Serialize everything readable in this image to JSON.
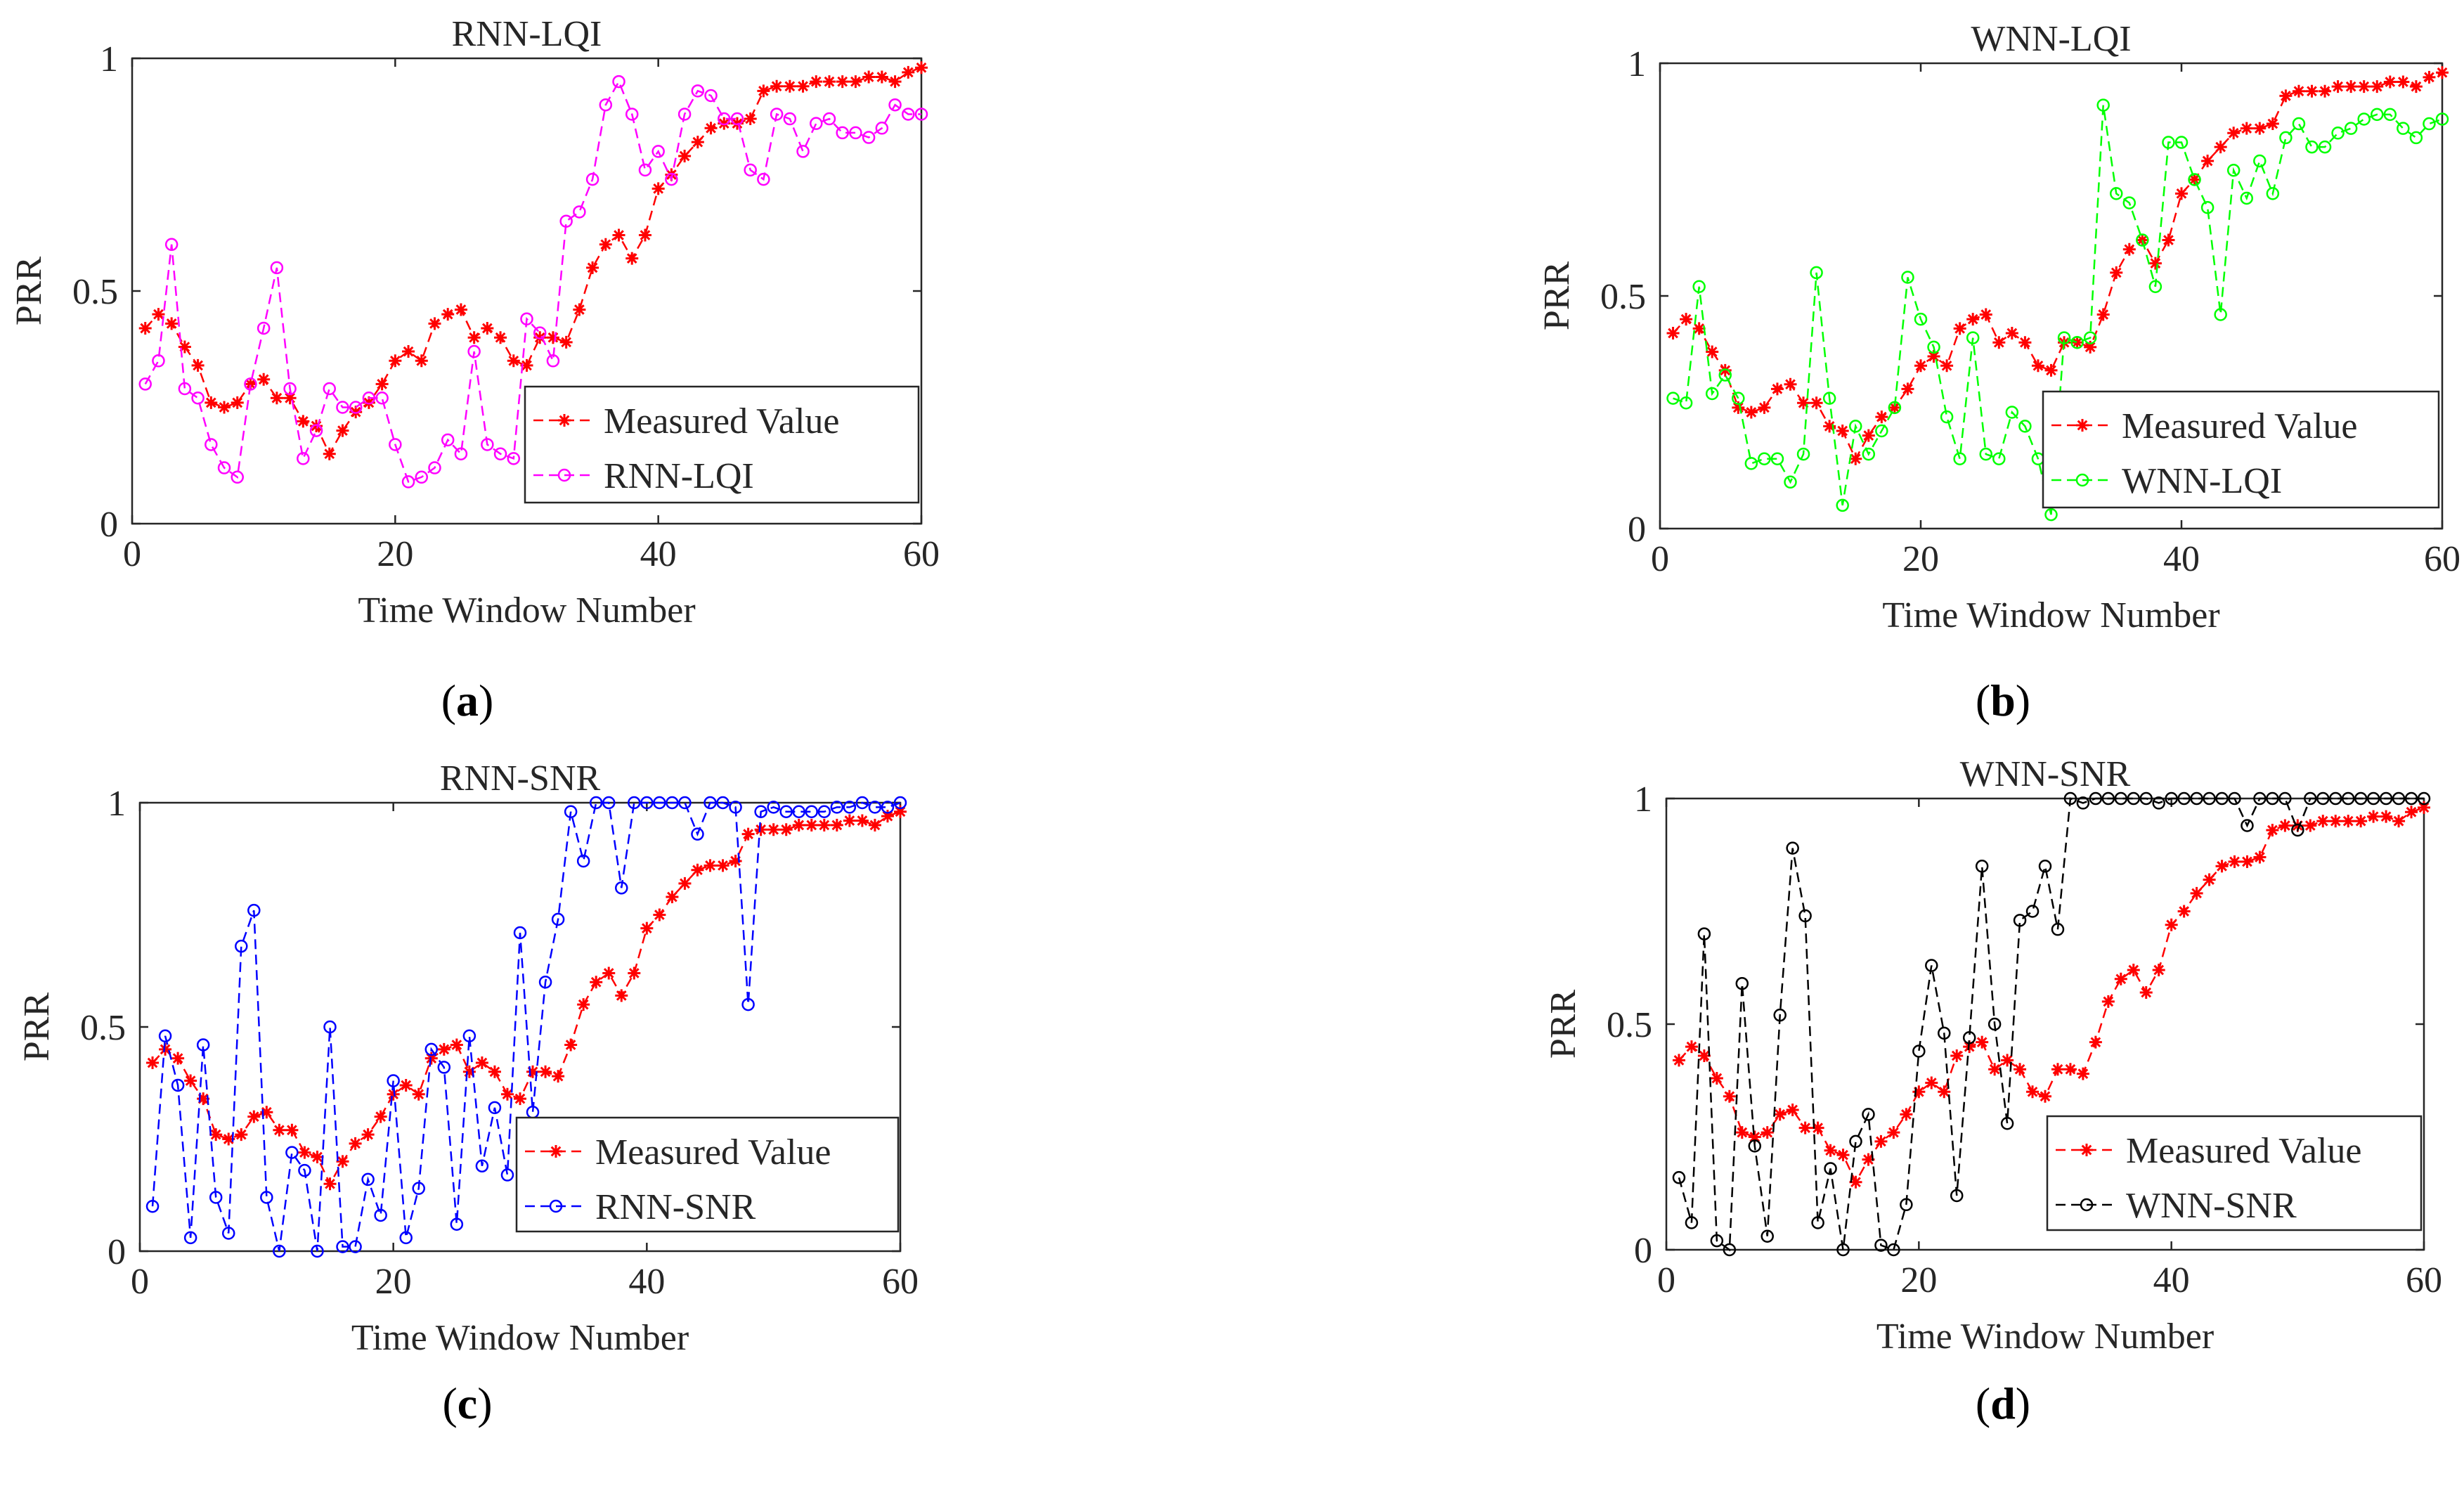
{
  "figure": {
    "panel_labels": [
      "a",
      "b",
      "c",
      "d"
    ]
  },
  "colors": {
    "measured": "#FF0000",
    "rnn_lqi": "#FF00FF",
    "wnn_lqi": "#00FF00",
    "rnn_snr": "#0000FF",
    "wnn_snr": "#000000",
    "axis": "#262626"
  },
  "chart_data": [
    {
      "type": "line",
      "title": "RNN-LQI",
      "xlabel": "Time Window Number",
      "ylabel": "PRR",
      "xlim": [
        0,
        60
      ],
      "ylim": [
        0,
        1
      ],
      "xticks": [
        0,
        20,
        40,
        60
      ],
      "yticks": [
        0,
        0.5,
        1
      ],
      "legend_position": "bottom-right",
      "x": [
        1,
        2,
        3,
        4,
        5,
        6,
        7,
        8,
        9,
        10,
        11,
        12,
        13,
        14,
        15,
        16,
        17,
        18,
        19,
        20,
        21,
        22,
        23,
        24,
        25,
        26,
        27,
        28,
        29,
        30,
        31,
        32,
        33,
        34,
        35,
        36,
        37,
        38,
        39,
        40,
        41,
        42,
        43,
        44,
        45,
        46,
        47,
        48,
        49,
        50,
        51,
        52,
        53,
        54,
        55,
        56,
        57,
        58,
        59,
        60
      ],
      "series": [
        {
          "name": "Measured Value",
          "marker": "star",
          "color": "#FF0000",
          "values": [
            0.42,
            0.45,
            0.43,
            0.38,
            0.34,
            0.26,
            0.25,
            0.26,
            0.3,
            0.31,
            0.27,
            0.27,
            0.22,
            0.21,
            0.15,
            0.2,
            0.24,
            0.26,
            0.3,
            0.35,
            0.37,
            0.35,
            0.43,
            0.45,
            0.46,
            0.4,
            0.42,
            0.4,
            0.35,
            0.34,
            0.4,
            0.4,
            0.39,
            0.46,
            0.55,
            0.6,
            0.62,
            0.57,
            0.62,
            0.72,
            0.75,
            0.79,
            0.82,
            0.85,
            0.86,
            0.86,
            0.87,
            0.93,
            0.94,
            0.94,
            0.94,
            0.95,
            0.95,
            0.95,
            0.95,
            0.96,
            0.96,
            0.95,
            0.97,
            0.98
          ]
        },
        {
          "name": "RNN-LQI",
          "marker": "circle",
          "color": "#FF00FF",
          "values": [
            0.3,
            0.35,
            0.6,
            0.29,
            0.27,
            0.17,
            0.12,
            0.1,
            0.3,
            0.42,
            0.55,
            0.29,
            0.14,
            0.2,
            0.29,
            0.25,
            0.25,
            0.27,
            0.27,
            0.17,
            0.09,
            0.1,
            0.12,
            0.18,
            0.15,
            0.37,
            0.17,
            0.15,
            0.14,
            0.44,
            0.41,
            0.35,
            0.65,
            0.67,
            0.74,
            0.9,
            0.95,
            0.88,
            0.76,
            0.8,
            0.74,
            0.88,
            0.93,
            0.92,
            0.87,
            0.87,
            0.76,
            0.74,
            0.88,
            0.87,
            0.8,
            0.86,
            0.87,
            0.84,
            0.84,
            0.83,
            0.85,
            0.9,
            0.88,
            0.88
          ]
        }
      ]
    },
    {
      "type": "line",
      "title": "WNN-LQI",
      "xlabel": "Time Window Number",
      "ylabel": "PRR",
      "xlim": [
        0,
        60
      ],
      "ylim": [
        0,
        1
      ],
      "xticks": [
        0,
        20,
        40,
        60
      ],
      "yticks": [
        0,
        0.5,
        1
      ],
      "legend_position": "bottom-right",
      "x": [
        1,
        2,
        3,
        4,
        5,
        6,
        7,
        8,
        9,
        10,
        11,
        12,
        13,
        14,
        15,
        16,
        17,
        18,
        19,
        20,
        21,
        22,
        23,
        24,
        25,
        26,
        27,
        28,
        29,
        30,
        31,
        32,
        33,
        34,
        35,
        36,
        37,
        38,
        39,
        40,
        41,
        42,
        43,
        44,
        45,
        46,
        47,
        48,
        49,
        50,
        51,
        52,
        53,
        54,
        55,
        56,
        57,
        58,
        59,
        60
      ],
      "series": [
        {
          "name": "Measured Value",
          "marker": "star",
          "color": "#FF0000",
          "values": [
            0.42,
            0.45,
            0.43,
            0.38,
            0.34,
            0.26,
            0.25,
            0.26,
            0.3,
            0.31,
            0.27,
            0.27,
            0.22,
            0.21,
            0.15,
            0.2,
            0.24,
            0.26,
            0.3,
            0.35,
            0.37,
            0.35,
            0.43,
            0.45,
            0.46,
            0.4,
            0.42,
            0.4,
            0.35,
            0.34,
            0.4,
            0.4,
            0.39,
            0.46,
            0.55,
            0.6,
            0.62,
            0.57,
            0.62,
            0.72,
            0.75,
            0.79,
            0.82,
            0.85,
            0.86,
            0.86,
            0.87,
            0.93,
            0.94,
            0.94,
            0.94,
            0.95,
            0.95,
            0.95,
            0.95,
            0.96,
            0.96,
            0.95,
            0.97,
            0.98
          ]
        },
        {
          "name": "WNN-LQI",
          "marker": "circle",
          "color": "#00FF00",
          "values": [
            0.28,
            0.27,
            0.52,
            0.29,
            0.33,
            0.28,
            0.14,
            0.15,
            0.15,
            0.1,
            0.16,
            0.55,
            0.28,
            0.05,
            0.22,
            0.16,
            0.21,
            0.26,
            0.54,
            0.45,
            0.39,
            0.24,
            0.15,
            0.41,
            0.16,
            0.15,
            0.25,
            0.22,
            0.15,
            0.03,
            0.41,
            0.4,
            0.41,
            0.91,
            0.72,
            0.7,
            0.62,
            0.52,
            0.83,
            0.83,
            0.75,
            0.69,
            0.46,
            0.77,
            0.71,
            0.79,
            0.72,
            0.84,
            0.87,
            0.82,
            0.82,
            0.85,
            0.86,
            0.88,
            0.89,
            0.89,
            0.86,
            0.84,
            0.87,
            0.88
          ]
        }
      ]
    },
    {
      "type": "line",
      "title": "RNN-SNR",
      "xlabel": "Time Window Number",
      "ylabel": "PRR",
      "xlim": [
        0,
        60
      ],
      "ylim": [
        0,
        1
      ],
      "xticks": [
        0,
        20,
        40,
        60
      ],
      "yticks": [
        0,
        0.5,
        1
      ],
      "legend_position": "bottom-right",
      "x": [
        1,
        2,
        3,
        4,
        5,
        6,
        7,
        8,
        9,
        10,
        11,
        12,
        13,
        14,
        15,
        16,
        17,
        18,
        19,
        20,
        21,
        22,
        23,
        24,
        25,
        26,
        27,
        28,
        29,
        30,
        31,
        32,
        33,
        34,
        35,
        36,
        37,
        38,
        39,
        40,
        41,
        42,
        43,
        44,
        45,
        46,
        47,
        48,
        49,
        50,
        51,
        52,
        53,
        54,
        55,
        56,
        57,
        58,
        59,
        60
      ],
      "series": [
        {
          "name": "Measured Value",
          "marker": "star",
          "color": "#FF0000",
          "values": [
            0.42,
            0.45,
            0.43,
            0.38,
            0.34,
            0.26,
            0.25,
            0.26,
            0.3,
            0.31,
            0.27,
            0.27,
            0.22,
            0.21,
            0.15,
            0.2,
            0.24,
            0.26,
            0.3,
            0.35,
            0.37,
            0.35,
            0.43,
            0.45,
            0.46,
            0.4,
            0.42,
            0.4,
            0.35,
            0.34,
            0.4,
            0.4,
            0.39,
            0.46,
            0.55,
            0.6,
            0.62,
            0.57,
            0.62,
            0.72,
            0.75,
            0.79,
            0.82,
            0.85,
            0.86,
            0.86,
            0.87,
            0.93,
            0.94,
            0.94,
            0.94,
            0.95,
            0.95,
            0.95,
            0.95,
            0.96,
            0.96,
            0.95,
            0.97,
            0.98
          ]
        },
        {
          "name": "RNN-SNR",
          "marker": "circle",
          "color": "#0000FF",
          "values": [
            0.1,
            0.48,
            0.37,
            0.03,
            0.46,
            0.12,
            0.04,
            0.68,
            0.76,
            0.12,
            0.0,
            0.22,
            0.18,
            0.0,
            0.5,
            0.01,
            0.01,
            0.16,
            0.08,
            0.38,
            0.03,
            0.14,
            0.45,
            0.41,
            0.06,
            0.48,
            0.19,
            0.32,
            0.17,
            0.71,
            0.31,
            0.6,
            0.74,
            0.98,
            0.87,
            1.0,
            1.0,
            0.81,
            1.0,
            1.0,
            1.0,
            1.0,
            1.0,
            0.93,
            1.0,
            1.0,
            0.99,
            0.55,
            0.98,
            0.99,
            0.98,
            0.98,
            0.98,
            0.98,
            0.99,
            0.99,
            1.0,
            0.99,
            0.99,
            1.0
          ]
        }
      ]
    },
    {
      "type": "line",
      "title": "WNN-SNR",
      "xlabel": "Time Window Number",
      "ylabel": "PRR",
      "xlim": [
        0,
        60
      ],
      "ylim": [
        0,
        1
      ],
      "xticks": [
        0,
        20,
        40,
        60
      ],
      "yticks": [
        0,
        0.5,
        1
      ],
      "legend_position": "bottom-right",
      "x": [
        1,
        2,
        3,
        4,
        5,
        6,
        7,
        8,
        9,
        10,
        11,
        12,
        13,
        14,
        15,
        16,
        17,
        18,
        19,
        20,
        21,
        22,
        23,
        24,
        25,
        26,
        27,
        28,
        29,
        30,
        31,
        32,
        33,
        34,
        35,
        36,
        37,
        38,
        39,
        40,
        41,
        42,
        43,
        44,
        45,
        46,
        47,
        48,
        49,
        50,
        51,
        52,
        53,
        54,
        55,
        56,
        57,
        58,
        59,
        60
      ],
      "series": [
        {
          "name": "Measured Value",
          "marker": "star",
          "color": "#FF0000",
          "values": [
            0.42,
            0.45,
            0.43,
            0.38,
            0.34,
            0.26,
            0.25,
            0.26,
            0.3,
            0.31,
            0.27,
            0.27,
            0.22,
            0.21,
            0.15,
            0.2,
            0.24,
            0.26,
            0.3,
            0.35,
            0.37,
            0.35,
            0.43,
            0.45,
            0.46,
            0.4,
            0.42,
            0.4,
            0.35,
            0.34,
            0.4,
            0.4,
            0.39,
            0.46,
            0.55,
            0.6,
            0.62,
            0.57,
            0.62,
            0.72,
            0.75,
            0.79,
            0.82,
            0.85,
            0.86,
            0.86,
            0.87,
            0.93,
            0.94,
            0.94,
            0.94,
            0.95,
            0.95,
            0.95,
            0.95,
            0.96,
            0.96,
            0.95,
            0.97,
            0.98
          ]
        },
        {
          "name": "WNN-SNR",
          "marker": "circle",
          "color": "#000000",
          "values": [
            0.16,
            0.06,
            0.7,
            0.02,
            0.0,
            0.59,
            0.23,
            0.03,
            0.52,
            0.89,
            0.74,
            0.06,
            0.18,
            0.0,
            0.24,
            0.3,
            0.01,
            0.0,
            0.1,
            0.44,
            0.63,
            0.48,
            0.12,
            0.47,
            0.85,
            0.5,
            0.28,
            0.73,
            0.75,
            0.85,
            0.71,
            1.0,
            0.99,
            1.0,
            1.0,
            1.0,
            1.0,
            1.0,
            0.99,
            1.0,
            1.0,
            1.0,
            1.0,
            1.0,
            1.0,
            0.94,
            1.0,
            1.0,
            1.0,
            0.93,
            1.0,
            1.0,
            1.0,
            1.0,
            1.0,
            1.0,
            1.0,
            1.0,
            1.0,
            1.0
          ]
        }
      ]
    }
  ]
}
